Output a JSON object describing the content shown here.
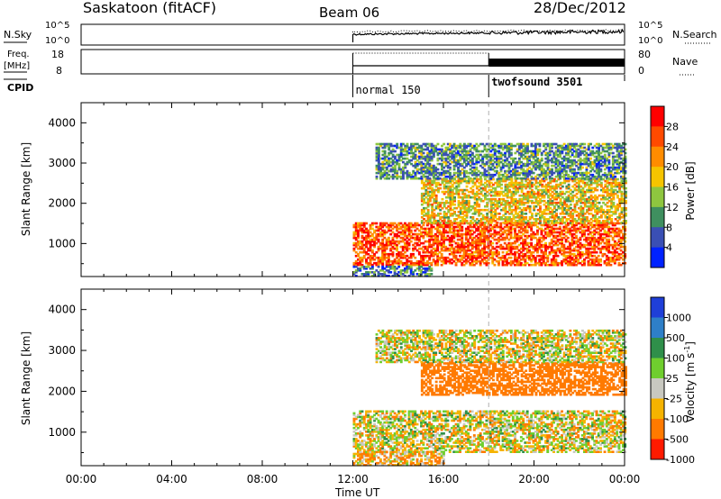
{
  "header": {
    "station": "Saskatoon (fitACF)",
    "beam": "Beam 06",
    "date": "28/Dec/2012"
  },
  "strips": {
    "nsky": {
      "label": "N.Sky",
      "right_label": "N.Search",
      "left_ticks": [
        "10^5",
        "10^0"
      ],
      "right_ticks": [
        "10^5",
        "10^0"
      ]
    },
    "freq": {
      "label_line1": "Freq.",
      "label_line2": "[MHz]",
      "right_label": "Nave",
      "left_ticks": [
        "18",
        "8"
      ],
      "right_ticks": [
        "80",
        "0"
      ]
    },
    "cpid": {
      "label": "CPID",
      "modes": [
        {
          "name": "normal 150",
          "start_hour": 12
        },
        {
          "name": "twofsound 3501",
          "start_hour": 18
        }
      ]
    }
  },
  "chart_data": [
    {
      "type": "heatmap",
      "panel": "power",
      "ylabel": "Slant Range [km]",
      "xlabel": "",
      "x_range_hours": [
        0,
        24
      ],
      "ylim": [
        180,
        4500
      ],
      "yticks": [
        1000,
        2000,
        3000,
        4000
      ],
      "data_start_hour": 12,
      "colorbar": {
        "label": "Power [dB]",
        "ticks": [
          "28",
          "24",
          "20",
          "16",
          "12",
          "8",
          "4"
        ],
        "colors": [
          "#ff0000",
          "#ff4a00",
          "#ff8c00",
          "#f5c400",
          "#8ec63f",
          "#3f8f5f",
          "#3a4fb4",
          "#0022ff"
        ]
      },
      "echo_regions": [
        {
          "t0": 12.0,
          "t1": 24.0,
          "r0": 450,
          "r1": 1500,
          "level": 26
        },
        {
          "t0": 15.0,
          "t1": 24.0,
          "r0": 1500,
          "r1": 2600,
          "level": 18
        },
        {
          "t0": 13.0,
          "t1": 24.0,
          "r0": 2600,
          "r1": 3500,
          "level": 10
        },
        {
          "t0": 12.0,
          "t1": 15.5,
          "r0": 180,
          "r1": 450,
          "level": 8
        }
      ]
    },
    {
      "type": "heatmap",
      "panel": "velocity",
      "ylabel": "Slant Range [km]",
      "xlabel": "Time UT",
      "x_range_hours": [
        0,
        24
      ],
      "xticks": [
        "00:00",
        "04:00",
        "08:00",
        "12:00",
        "16:00",
        "20:00",
        "00:00"
      ],
      "ylim": [
        180,
        4500
      ],
      "yticks": [
        1000,
        2000,
        3000,
        4000
      ],
      "data_start_hour": 12,
      "colorbar": {
        "label": "Velocity [m s",
        "label_sup": "-1",
        "label_end": "]",
        "ticks": [
          "1000",
          "500",
          "100",
          "25",
          "-25",
          "-100",
          "-500",
          "-1000"
        ],
        "colors": [
          "#1f3fd8",
          "#2e7fc8",
          "#2f8f4a",
          "#6fce2e",
          "#c8c8c0",
          "#f5b300",
          "#ff7a00",
          "#ff1a00"
        ]
      },
      "echo_regions": [
        {
          "t0": 12.0,
          "t1": 24.0,
          "r0": 500,
          "r1": 1500,
          "level": 0
        },
        {
          "t0": 15.0,
          "t1": 24.0,
          "r0": 1900,
          "r1": 2700,
          "level": -300
        },
        {
          "t0": 13.0,
          "t1": 24.0,
          "r0": 2700,
          "r1": 3500,
          "level": 0
        },
        {
          "t0": 12.0,
          "t1": 16.0,
          "r0": 180,
          "r1": 500,
          "level": -80
        }
      ]
    }
  ]
}
